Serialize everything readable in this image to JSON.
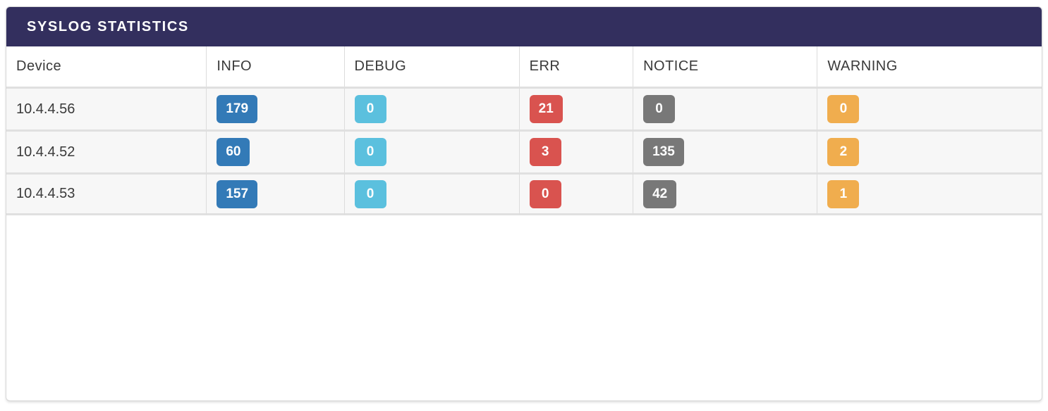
{
  "panel": {
    "title": "SYSLOG STATISTICS"
  },
  "colors": {
    "header_bar": "#332f5e",
    "row_background": "#f7f7f7",
    "separator": "#e0e0e0",
    "badge_info": "#337ab7",
    "badge_debug": "#5bc0de",
    "badge_err": "#d9534f",
    "badge_notice": "#787878",
    "badge_warning": "#f0ad4e"
  },
  "table": {
    "columns": [
      {
        "key": "device",
        "label": "Device"
      },
      {
        "key": "info",
        "label": "INFO"
      },
      {
        "key": "debug",
        "label": "DEBUG"
      },
      {
        "key": "err",
        "label": "ERR"
      },
      {
        "key": "notice",
        "label": "NOTICE"
      },
      {
        "key": "warning",
        "label": "WARNING"
      }
    ],
    "rows": [
      {
        "device": "10.4.4.56",
        "info": "179",
        "debug": "0",
        "err": "21",
        "notice": "0",
        "warning": "0"
      },
      {
        "device": "10.4.4.52",
        "info": "60",
        "debug": "0",
        "err": "3",
        "notice": "135",
        "warning": "2"
      },
      {
        "device": "10.4.4.53",
        "info": "157",
        "debug": "0",
        "err": "0",
        "notice": "42",
        "warning": "1"
      }
    ]
  }
}
